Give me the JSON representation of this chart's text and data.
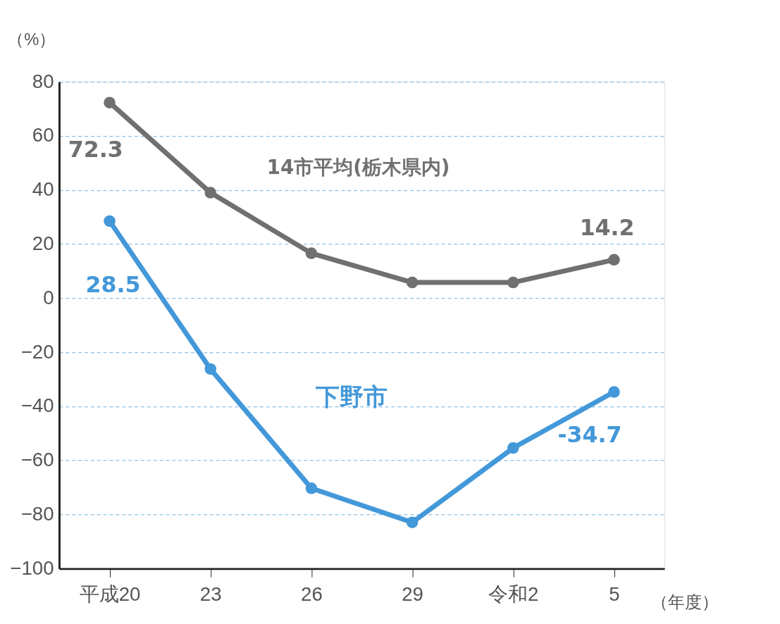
{
  "chart_data": {
    "type": "line",
    "categories": [
      "平成20",
      "23",
      "26",
      "29",
      "令和2",
      "5"
    ],
    "xlabel": "（年度）",
    "ylabel": "（%）",
    "series": [
      {
        "name": "14市平均(栃木県内)",
        "color": "#707070",
        "values": [
          72.3,
          39,
          16.6,
          5.8,
          5.8,
          14.2
        ],
        "value_labels": [
          "72.3",
          null,
          null,
          null,
          null,
          "14.2"
        ]
      },
      {
        "name": "下野市",
        "color": "#4398d9",
        "values": [
          28.5,
          -26.2,
          -70.3,
          -82.9,
          -55.4,
          -34.7
        ],
        "value_labels": [
          "28.5",
          null,
          null,
          null,
          null,
          "-34.7"
        ]
      }
    ],
    "ylim": [
      -100,
      80
    ],
    "yticks": [
      -100,
      -80,
      -60,
      -40,
      -20,
      0,
      20,
      40,
      60,
      80
    ],
    "grid": "y",
    "legend": false,
    "marker": "circle",
    "line_style": "solid"
  }
}
